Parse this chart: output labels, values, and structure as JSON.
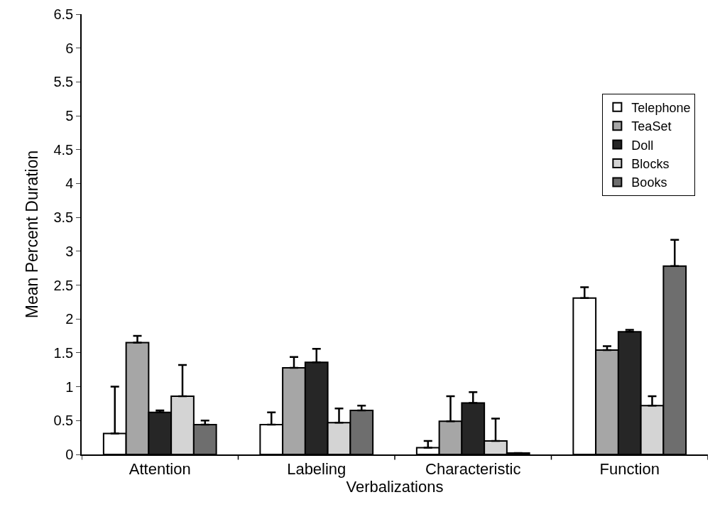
{
  "chart_data": {
    "type": "bar",
    "xlabel": "Verbalizations",
    "ylabel": "Mean Percent Duration",
    "categories": [
      "Attention",
      "Labeling",
      "Characteristic",
      "Function"
    ],
    "series": [
      {
        "name": "Telephone",
        "color": "#ffffff",
        "values": [
          0.31,
          0.44,
          0.1,
          2.31
        ],
        "errors": [
          [
            0.31,
            1.0
          ],
          [
            0.44,
            0.62
          ],
          [
            0.1,
            0.2
          ],
          [
            2.31,
            2.47
          ]
        ]
      },
      {
        "name": "TeaSet",
        "color": "#a6a6a6",
        "values": [
          1.65,
          1.28,
          0.49,
          1.54
        ],
        "errors": [
          [
            1.65,
            1.75
          ],
          [
            1.28,
            1.44
          ],
          [
            0.49,
            0.86
          ],
          [
            1.54,
            1.6
          ]
        ]
      },
      {
        "name": "Doll",
        "color": "#262626",
        "values": [
          0.62,
          1.36,
          0.76,
          1.81
        ],
        "errors": [
          [
            0.62,
            0.65
          ],
          [
            1.36,
            1.56
          ],
          [
            0.76,
            0.92
          ],
          [
            1.81,
            1.84
          ]
        ]
      },
      {
        "name": "Blocks",
        "color": "#d4d4d4",
        "values": [
          0.86,
          0.47,
          0.2,
          0.72
        ],
        "errors": [
          [
            0.86,
            1.32
          ],
          [
            0.47,
            0.68
          ],
          [
            0.2,
            0.53
          ],
          [
            0.72,
            0.86
          ]
        ]
      },
      {
        "name": "Books",
        "color": "#6e6e6e",
        "values": [
          0.44,
          0.65,
          0.02,
          2.78
        ],
        "errors": [
          [
            0.44,
            0.5
          ],
          [
            0.65,
            0.72
          ],
          [
            0.02,
            0.02
          ],
          [
            2.78,
            3.17
          ]
        ]
      }
    ],
    "ylim": [
      0,
      6.5
    ],
    "yticks": [
      0,
      0.5,
      1,
      1.5,
      2,
      2.5,
      3,
      3.5,
      4,
      4.5,
      5,
      5.5,
      6,
      6.5
    ],
    "legend": "right"
  }
}
